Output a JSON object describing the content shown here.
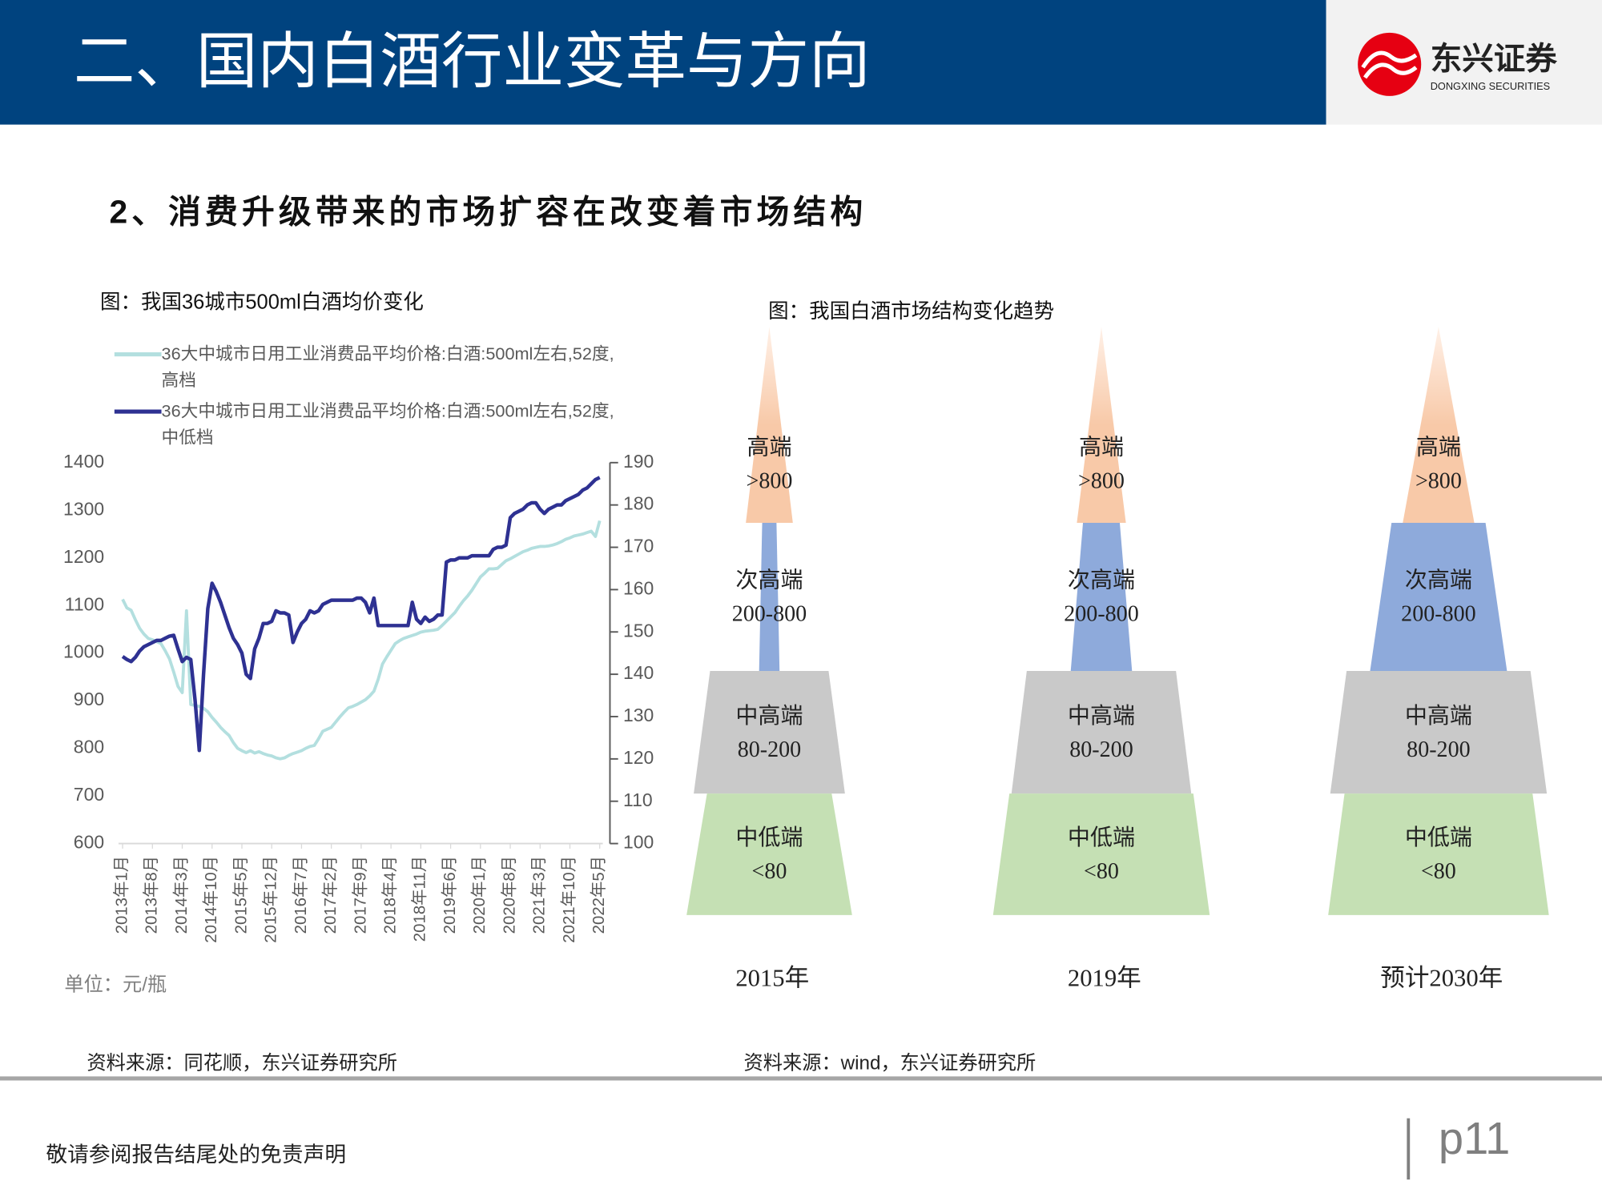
{
  "header": {
    "title": "二、国内白酒行业变革与方向",
    "logo_name": "东兴证券",
    "logo_sub": "DONGXING SECURITIES"
  },
  "subtitle": "2、消费升级带来的市场扩容在改变着市场结构",
  "chart_data": {
    "type": "line",
    "title": "图：我国36城市500ml白酒均价变化",
    "note": "单位：元/瓶",
    "categories": [
      "2013年1月",
      null,
      null,
      null,
      null,
      null,
      null,
      "2013年8月",
      null,
      null,
      null,
      null,
      null,
      null,
      "2014年3月",
      null,
      null,
      null,
      null,
      null,
      null,
      "2014年10月",
      null,
      null,
      null,
      null,
      null,
      null,
      "2015年5月",
      null,
      null,
      null,
      null,
      null,
      null,
      "2015年12月",
      null,
      null,
      null,
      null,
      null,
      null,
      "2016年7月",
      null,
      null,
      null,
      null,
      null,
      null,
      "2017年2月",
      null,
      null,
      null,
      null,
      null,
      null,
      "2017年9月",
      null,
      null,
      null,
      null,
      null,
      null,
      "2018年4月",
      null,
      null,
      null,
      null,
      null,
      null,
      "2018年11月",
      null,
      null,
      null,
      null,
      null,
      null,
      "2019年6月",
      null,
      null,
      null,
      null,
      null,
      null,
      "2020年1月",
      null,
      null,
      null,
      null,
      null,
      null,
      "2020年8月",
      null,
      null,
      null,
      null,
      null,
      null,
      "2021年3月",
      null,
      null,
      null,
      null,
      null,
      null,
      "2021年10月",
      null,
      null,
      null,
      null,
      null,
      null,
      "2022年5月"
    ],
    "series": [
      {
        "name": "36大中城市日用工业消费品平均价格:白酒:500ml左右,52度,高档",
        "color": "#b3dfdf",
        "values": [
          1113,
          1095,
          1090,
          1070,
          1052,
          1040,
          1031,
          1028,
          1024,
          1020,
          1005,
          988,
          960,
          930,
          917,
          1089,
          892,
          890,
          888,
          884,
          877,
          865,
          855,
          844,
          835,
          827,
          812,
          800,
          795,
          791,
          795,
          790,
          793,
          789,
          786,
          784,
          780,
          778,
          780,
          785,
          789,
          792,
          795,
          800,
          804,
          806,
          820,
          836,
          840,
          844,
          855,
          866,
          876,
          885,
          888,
          892,
          897,
          902,
          910,
          920,
          945,
          977,
          992,
          1006,
          1020,
          1026,
          1031,
          1034,
          1037,
          1040,
          1044,
          1046,
          1047,
          1048,
          1050,
          1058,
          1067,
          1076,
          1085,
          1098,
          1110,
          1120,
          1132,
          1146,
          1160,
          1168,
          1177,
          1177,
          1178,
          1186,
          1194,
          1198,
          1203,
          1208,
          1213,
          1216,
          1220,
          1222,
          1224,
          1224,
          1225,
          1227,
          1230,
          1234,
          1239,
          1242,
          1246,
          1248,
          1250,
          1253,
          1256,
          1245,
          1278
        ]
      },
      {
        "name": "36大中城市日用工业消费品平均价格:白酒:500ml左右,52度,中低档",
        "color": "#2e3192",
        "axis": "y2",
        "values": [
          144.2,
          143.5,
          143,
          144,
          145.5,
          146.5,
          147,
          147.5,
          148,
          148,
          148.5,
          149,
          149.2,
          146,
          143,
          144,
          143.5,
          134,
          122,
          140,
          155.5,
          161.5,
          159.5,
          157,
          154,
          151,
          148.5,
          147,
          145,
          140,
          139,
          146,
          148.5,
          152,
          152,
          152.5,
          155,
          154.5,
          154.5,
          154,
          147.5,
          150,
          152,
          153,
          155,
          154.5,
          155,
          156.5,
          157,
          157.5,
          157.5,
          157.5,
          157.5,
          157.5,
          157.5,
          158,
          158,
          157,
          154.5,
          158,
          151.5,
          151.5,
          151.5,
          151.5,
          151.5,
          151.5,
          151.5,
          151.5,
          157,
          153,
          152,
          153.5,
          152.5,
          153,
          154,
          154,
          166.5,
          167,
          167,
          167.5,
          167.5,
          167.5,
          168,
          168,
          168,
          168,
          168,
          169.5,
          170,
          170,
          170.5,
          177,
          178,
          178.5,
          179,
          180,
          180.5,
          180.5,
          179,
          178,
          179,
          179.5,
          180,
          180,
          181,
          181.5,
          182,
          182.5,
          183.5,
          184,
          185,
          186,
          186.5
        ]
      }
    ],
    "ylim": [
      600,
      1400
    ],
    "yticks": [
      600,
      700,
      800,
      900,
      1000,
      1100,
      1200,
      1300,
      1400
    ],
    "y2lim": [
      100,
      190
    ],
    "y2ticks": [
      100,
      110,
      120,
      130,
      140,
      150,
      160,
      170,
      180,
      190
    ],
    "source": "资料来源：同花顺，东兴证券研究所"
  },
  "diagram": {
    "title": "图：我国白酒市场结构变化趋势",
    "columns": [
      {
        "label": "2015年",
        "layers": [
          {
            "name": "高端",
            "range": ">800"
          },
          {
            "name": "次高端",
            "range": "200-800"
          },
          {
            "name": "中高端",
            "range": "80-200"
          },
          {
            "name": "中低端",
            "range": "<80"
          }
        ]
      },
      {
        "label": "2019年",
        "layers": [
          {
            "name": "高端",
            "range": ">800"
          },
          {
            "name": "次高端",
            "range": "200-800"
          },
          {
            "name": "中高端",
            "range": "80-200"
          },
          {
            "name": "中低端",
            "range": "<80"
          }
        ]
      },
      {
        "label": "预计2030年",
        "layers": [
          {
            "name": "高端",
            "range": ">800"
          },
          {
            "name": "次高端",
            "range": "200-800"
          },
          {
            "name": "中高端",
            "range": "80-200"
          },
          {
            "name": "中低端",
            "range": "<80"
          }
        ]
      }
    ],
    "source": "资料来源：wind，东兴证券研究所"
  },
  "footer": {
    "disclaimer": "敬请参阅报告结尾处的免责声明",
    "page": "p11"
  }
}
